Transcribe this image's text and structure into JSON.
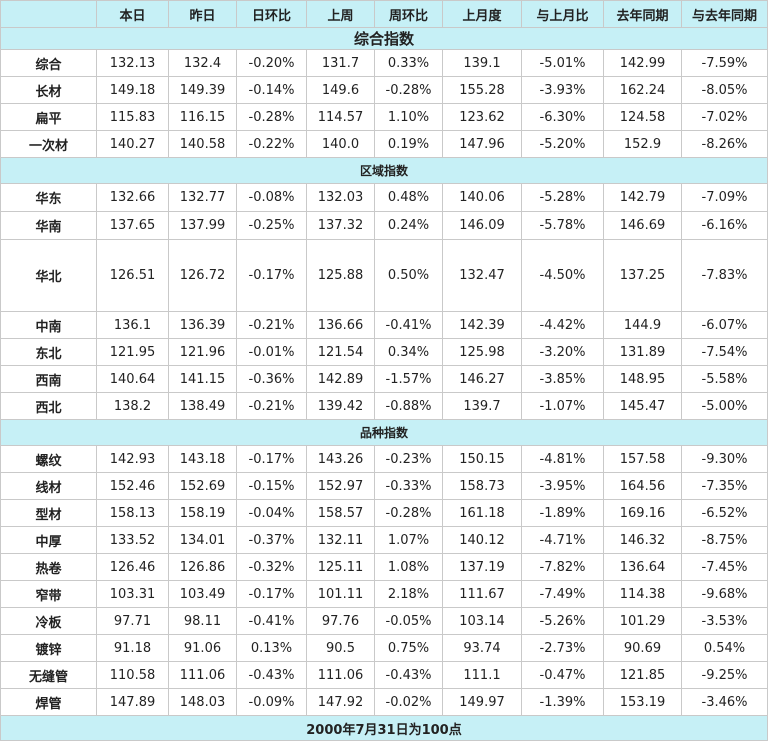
{
  "headers": [
    "",
    "本日",
    "昨日",
    "日环比",
    "上周",
    "周环比",
    "上月度",
    "与上月比",
    "去年同期",
    "与去年同期"
  ],
  "sections": [
    {
      "title": "综合指数",
      "size": "big",
      "rows": [
        {
          "name": "综合",
          "h": 27,
          "cells": [
            "132.13",
            "132.4",
            "-0.20%",
            "131.7",
            "0.33%",
            "139.1",
            "-5.01%",
            "142.99",
            "-7.59%"
          ]
        },
        {
          "name": "长材",
          "h": 27,
          "cells": [
            "149.18",
            "149.39",
            "-0.14%",
            "149.6",
            "-0.28%",
            "155.28",
            "-3.93%",
            "162.24",
            "-8.05%"
          ]
        },
        {
          "name": "扁平",
          "h": 27,
          "cells": [
            "115.83",
            "116.15",
            "-0.28%",
            "114.57",
            "1.10%",
            "123.62",
            "-6.30%",
            "124.58",
            "-7.02%"
          ]
        },
        {
          "name": "一次材",
          "h": 27,
          "cells": [
            "140.27",
            "140.58",
            "-0.22%",
            "140.0",
            "0.19%",
            "147.96",
            "-5.20%",
            "152.9",
            "-8.26%"
          ]
        }
      ]
    },
    {
      "title": "区域指数",
      "size": "small",
      "rows": [
        {
          "name": "华东",
          "h": 28,
          "cells": [
            "132.66",
            "132.77",
            "-0.08%",
            "132.03",
            "0.48%",
            "140.06",
            "-5.28%",
            "142.79",
            "-7.09%"
          ]
        },
        {
          "name": "华南",
          "h": 28,
          "cells": [
            "137.65",
            "137.99",
            "-0.25%",
            "137.32",
            "0.24%",
            "146.09",
            "-5.78%",
            "146.69",
            "-6.16%"
          ]
        },
        {
          "name": "华北",
          "h": 72,
          "cells": [
            "126.51",
            "126.72",
            "-0.17%",
            "125.88",
            "0.50%",
            "132.47",
            "-4.50%",
            "137.25",
            "-7.83%"
          ]
        },
        {
          "name": "中南",
          "h": 27,
          "cells": [
            "136.1",
            "136.39",
            "-0.21%",
            "136.66",
            "-0.41%",
            "142.39",
            "-4.42%",
            "144.9",
            "-6.07%"
          ]
        },
        {
          "name": "东北",
          "h": 27,
          "cells": [
            "121.95",
            "121.96",
            "-0.01%",
            "121.54",
            "0.34%",
            "125.98",
            "-3.20%",
            "131.89",
            "-7.54%"
          ]
        },
        {
          "name": "西南",
          "h": 27,
          "cells": [
            "140.64",
            "141.15",
            "-0.36%",
            "142.89",
            "-1.57%",
            "146.27",
            "-3.85%",
            "148.95",
            "-5.58%"
          ]
        },
        {
          "name": "西北",
          "h": 27,
          "cells": [
            "138.2",
            "138.49",
            "-0.21%",
            "139.42",
            "-0.88%",
            "139.7",
            "-1.07%",
            "145.47",
            "-5.00%"
          ]
        }
      ]
    },
    {
      "title": "品种指数",
      "size": "small",
      "rows": [
        {
          "name": "螺纹",
          "h": 27,
          "cells": [
            "142.93",
            "143.18",
            "-0.17%",
            "143.26",
            "-0.23%",
            "150.15",
            "-4.81%",
            "157.58",
            "-9.30%"
          ]
        },
        {
          "name": "线材",
          "h": 27,
          "cells": [
            "152.46",
            "152.69",
            "-0.15%",
            "152.97",
            "-0.33%",
            "158.73",
            "-3.95%",
            "164.56",
            "-7.35%"
          ]
        },
        {
          "name": "型材",
          "h": 27,
          "cells": [
            "158.13",
            "158.19",
            "-0.04%",
            "158.57",
            "-0.28%",
            "161.18",
            "-1.89%",
            "169.16",
            "-6.52%"
          ]
        },
        {
          "name": "中厚",
          "h": 27,
          "cells": [
            "133.52",
            "134.01",
            "-0.37%",
            "132.11",
            "1.07%",
            "140.12",
            "-4.71%",
            "146.32",
            "-8.75%"
          ]
        },
        {
          "name": "热卷",
          "h": 27,
          "cells": [
            "126.46",
            "126.86",
            "-0.32%",
            "125.11",
            "1.08%",
            "137.19",
            "-7.82%",
            "136.64",
            "-7.45%"
          ]
        },
        {
          "name": "窄带",
          "h": 27,
          "cells": [
            "103.31",
            "103.49",
            "-0.17%",
            "101.11",
            "2.18%",
            "111.67",
            "-7.49%",
            "114.38",
            "-9.68%"
          ]
        },
        {
          "name": "冷板",
          "h": 27,
          "cells": [
            "97.71",
            "98.11",
            "-0.41%",
            "97.76",
            "-0.05%",
            "103.14",
            "-5.26%",
            "101.29",
            "-3.53%"
          ]
        },
        {
          "name": "镀锌",
          "h": 27,
          "cells": [
            "91.18",
            "91.06",
            "0.13%",
            "90.5",
            "0.75%",
            "93.74",
            "-2.73%",
            "90.69",
            "0.54%"
          ]
        },
        {
          "name": "无缝管",
          "h": 27,
          "cells": [
            "110.58",
            "111.06",
            "-0.43%",
            "111.06",
            "-0.43%",
            "111.1",
            "-0.47%",
            "121.85",
            "-9.25%"
          ]
        },
        {
          "name": "焊管",
          "h": 27,
          "cells": [
            "147.89",
            "148.03",
            "-0.09%",
            "147.92",
            "-0.02%",
            "149.97",
            "-1.39%",
            "153.19",
            "-3.46%"
          ]
        }
      ]
    }
  ],
  "footer": "2000年7月31日为100点",
  "colors": {
    "header_bg": "#c6f0f6",
    "positive": "#e00000",
    "negative": "#0a8a0a",
    "grid": "#c9c9c9"
  }
}
